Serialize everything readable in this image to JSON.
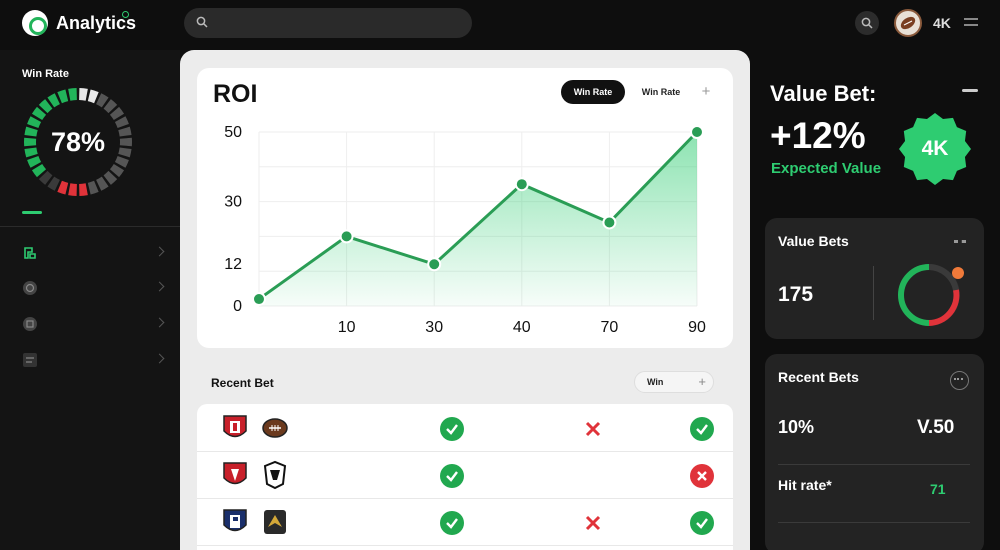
{
  "header": {
    "app_name": "Analytics",
    "search_placeholder": "",
    "user_label": "4K"
  },
  "sidebar": {
    "win_rate_label": "Win Rate",
    "win_rate_value": "78%",
    "win_rate_fraction": 0.78,
    "nav": [
      {
        "icon": "dashboard-icon",
        "active": true
      },
      {
        "icon": "clock-icon",
        "active": false
      },
      {
        "icon": "target-icon",
        "active": false
      },
      {
        "icon": "list-icon",
        "active": false
      }
    ]
  },
  "roi": {
    "title": "ROI",
    "tabs": [
      "Win Rate",
      "Win Rate"
    ],
    "add": "+"
  },
  "chart_data": {
    "type": "area",
    "title": "ROI",
    "x_ticks": [
      "10",
      "30",
      "40",
      "70",
      "90"
    ],
    "y_ticks": [
      "0",
      "12",
      "30",
      "50"
    ],
    "series": [
      {
        "values": [
          2,
          20,
          12,
          35,
          24,
          50
        ]
      }
    ],
    "y_range": [
      0,
      50
    ],
    "grid": true,
    "colors": {
      "line": "#2a9d55",
      "fill": "#2ecc71"
    }
  },
  "recent_bets": {
    "title": "Recent Bet",
    "filter": "Win",
    "filter_add": "+",
    "rows": [
      {
        "teams": [
          "shield-red",
          "football-brown"
        ],
        "results": [
          "check",
          "cross",
          "check"
        ]
      },
      {
        "teams": [
          "shield-red-b",
          "spartan-dark"
        ],
        "results": [
          "check",
          null,
          "cross-circle"
        ]
      },
      {
        "teams": [
          "shield-navy",
          "eagle-gold"
        ],
        "results": [
          "check",
          "cross",
          "check"
        ]
      }
    ]
  },
  "value_bet": {
    "title": "Value Bet:",
    "value": "+12%",
    "subtitle": "Expected Value",
    "badge": "4K",
    "colors": {
      "accent": "#2ecc71"
    }
  },
  "value_bets_card": {
    "title": "Value Bets",
    "value": "175"
  },
  "recent_bets_card": {
    "title": "Recent Bets",
    "stat_left": "10%",
    "stat_right": "V.50",
    "hit_rate_label": "Hit rate*",
    "hit_rate_value": "71"
  }
}
